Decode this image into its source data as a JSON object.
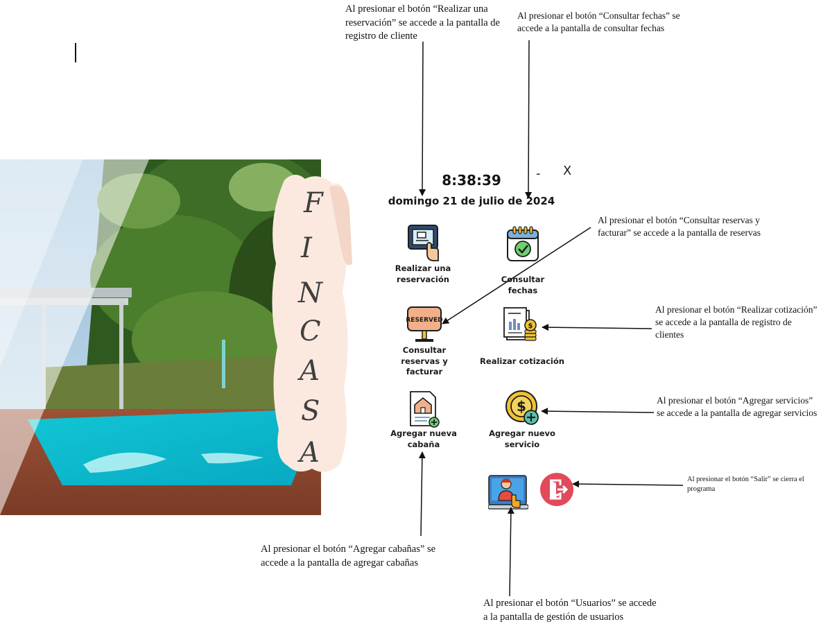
{
  "window": {
    "clock": "8:38:39",
    "date": "domingo 21 de julio de 2024",
    "minimize_label": "-",
    "close_label": "X"
  },
  "brand": {
    "letters": [
      "F",
      "I",
      "N",
      "C",
      "A",
      "S",
      "A"
    ]
  },
  "menu": {
    "reservar": "Realizar una\nreservación",
    "consultar_fechas": "Consultar fechas",
    "consultar_reservas": "Consultar reservas y\nfacturar",
    "cotizacion": "Realizar cotización",
    "agregar_cabana": "Agregar nueva\ncabaña",
    "agregar_servicio": "Agregar nuevo\nservicio"
  },
  "annotations": {
    "reservar": "Al presionar el botón “Realizar una\nreservación” se accede a la pantalla de\nregistro de cliente",
    "consultar_fechas": "Al presionar el botón “Consultar fechas” se\naccede a la pantalla de consultar fechas",
    "consultar_reservas": "Al presionar el botón “Consultar reservas y\nfacturar” se accede a la pantalla de reservas",
    "cotizacion": "Al presionar el botón “Realizar cotización”\nse accede a la pantalla de registro de\nclientes",
    "agregar_servicios": "Al presionar el botón “Agregar servicios”\nse accede a la pantalla de agregar servicios",
    "salir": "Al presionar el botón “Salir” se cierra el\nprograma",
    "agregar_cabanas": "Al presionar el botón “Agregar cabañas” se\naccede a la pantalla de agregar cabañas",
    "usuarios": "Al presionar el botón “Usuarios” se accede\na la pantalla de gestión de usuarios"
  }
}
